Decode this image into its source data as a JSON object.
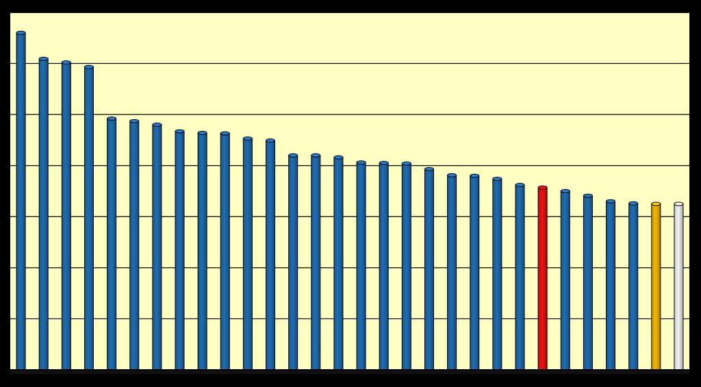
{
  "chart_data": {
    "type": "bar",
    "categories": [
      null,
      null,
      null,
      null,
      null,
      null,
      null,
      null,
      null,
      null,
      null,
      null,
      null,
      null,
      null,
      null,
      null,
      null,
      null,
      null,
      null,
      null,
      null,
      null,
      null,
      null,
      null,
      null,
      null,
      null
    ],
    "values": [
      6.6,
      6.09,
      6.02,
      5.93,
      4.92,
      4.87,
      4.8,
      4.67,
      4.64,
      4.63,
      4.53,
      4.49,
      4.2,
      4.2,
      4.16,
      4.06,
      4.05,
      4.04,
      3.93,
      3.81,
      3.8,
      3.74,
      3.62,
      3.57,
      3.5,
      3.41,
      3.3,
      3.26,
      3.25,
      3.25
    ],
    "colors": [
      "#1f6db3",
      "#1f6db3",
      "#1f6db3",
      "#1f6db3",
      "#1f6db3",
      "#1f6db3",
      "#1f6db3",
      "#1f6db3",
      "#1f6db3",
      "#1f6db3",
      "#1f6db3",
      "#1f6db3",
      "#1f6db3",
      "#1f6db3",
      "#1f6db3",
      "#1f6db3",
      "#1f6db3",
      "#1f6db3",
      "#1f6db3",
      "#1f6db3",
      "#1f6db3",
      "#1f6db3",
      "#1f6db3",
      "#ee1111",
      "#1f6db3",
      "#1f6db3",
      "#1f6db3",
      "#1f6db3",
      "#f5b800",
      "#f4f4f4"
    ],
    "ylim": [
      0,
      7
    ],
    "yticks": [
      0,
      1,
      2,
      3,
      4,
      5,
      6,
      7
    ],
    "grid": true
  }
}
